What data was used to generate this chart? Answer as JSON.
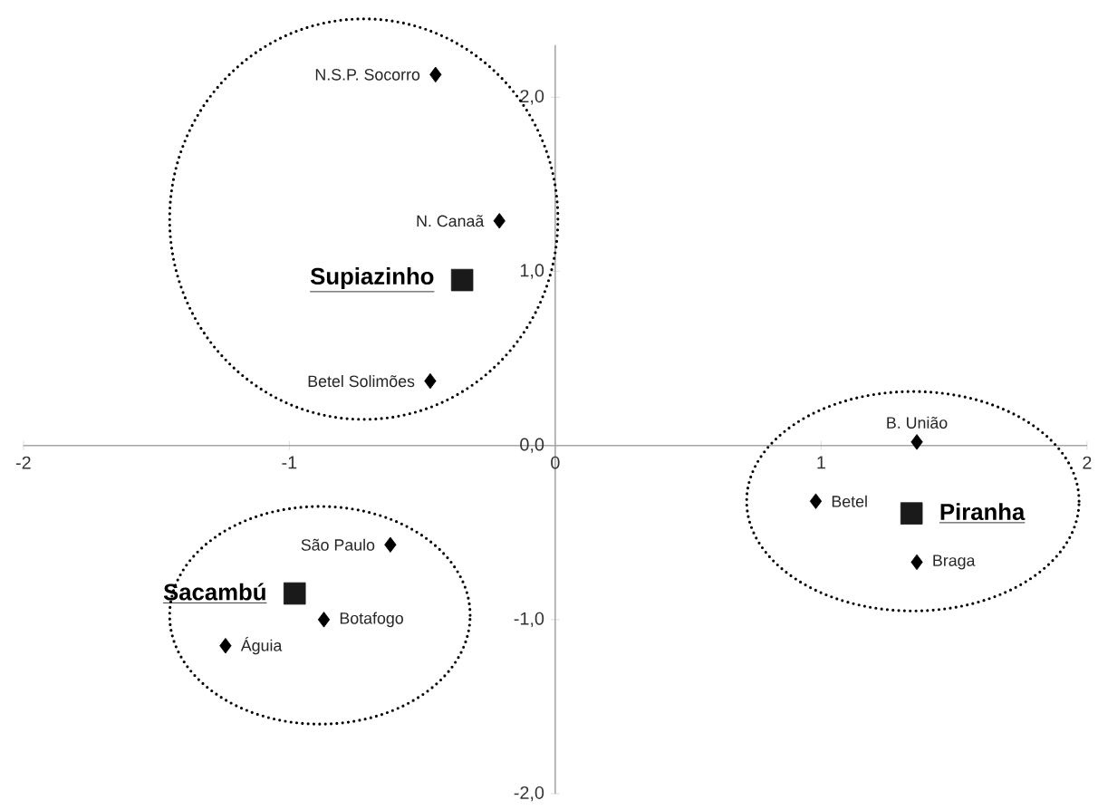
{
  "chart_data": {
    "type": "scatter",
    "xlim": [
      -2,
      2
    ],
    "ylim": [
      -2,
      2.3
    ],
    "xticks": [
      -2,
      -1,
      0,
      1,
      2
    ],
    "yticks": [
      {
        "value": -2,
        "label": "-2,0"
      },
      {
        "value": -1,
        "label": "-1,0"
      },
      {
        "value": 0,
        "label": "0,0"
      },
      {
        "value": 1,
        "label": "1,0"
      },
      {
        "value": 2,
        "label": "2,0"
      }
    ],
    "series": [
      {
        "color": "#000000",
        "marker": "diamond",
        "x": [
          -0.45,
          -0.21,
          -0.47,
          1.36,
          0.98,
          1.36,
          -0.62,
          -0.87,
          -1.24
        ],
        "values": [
          2.13,
          1.29,
          0.37,
          0.02,
          -0.32,
          -0.67,
          -0.57,
          -1.0,
          -1.15
        ]
      },
      {
        "name": "Supiazinho",
        "color": "#1a1a1a",
        "marker": "square",
        "x": [
          -0.35
        ],
        "values": [
          0.95
        ]
      },
      {
        "name": "Piranha",
        "color": "#1a1a1a",
        "marker": "square",
        "x": [
          1.34
        ],
        "values": [
          -0.39
        ]
      },
      {
        "name": "Sacambú",
        "color": "#1a1a1a",
        "marker": "square",
        "x": [
          -0.98
        ],
        "values": [
          -0.85
        ]
      }
    ],
    "annotations": [
      {
        "text": "N.S.P. Socorro",
        "x": -0.45,
        "y": 2.13
      },
      {
        "text": "N. Canaã",
        "x": -0.21,
        "y": 1.29
      },
      {
        "text": "Betel Solimões",
        "x": -0.47,
        "y": 0.37
      },
      {
        "text": "B. União",
        "x": 1.36,
        "y": 0.02
      },
      {
        "text": "Betel",
        "x": 0.98,
        "y": -0.32
      },
      {
        "text": "Braga",
        "x": 1.36,
        "y": -0.67
      },
      {
        "text": "São Paulo",
        "x": -0.62,
        "y": -0.57
      },
      {
        "text": "Botafogo",
        "x": -0.87,
        "y": -1.0
      },
      {
        "text": "Águia",
        "x": -1.24,
        "y": -1.15
      }
    ]
  }
}
